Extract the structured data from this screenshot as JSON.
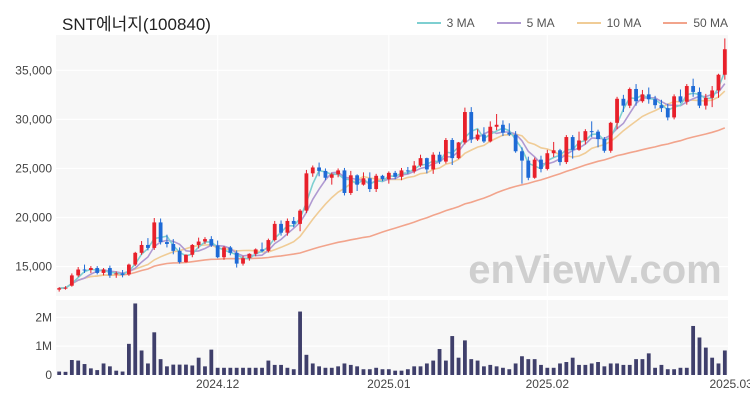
{
  "chart_data": {
    "type": "candlestick",
    "title": "SNT에너지(100840)",
    "legend": [
      {
        "label": "3 MA",
        "color": "#7ecfd1"
      },
      {
        "label": "5 MA",
        "color": "#b09ad2"
      },
      {
        "label": "10 MA",
        "color": "#f0cc96"
      },
      {
        "label": "50 MA",
        "color": "#f2a48c"
      }
    ],
    "watermark": "enViewV.com",
    "colors": {
      "up": "#e8202a",
      "down": "#1e6ad6",
      "volume": "#3f3f6b"
    },
    "price_axis": {
      "ylim": [
        12000,
        38600
      ],
      "ticks": [
        15000,
        20000,
        25000,
        30000,
        35000
      ],
      "tick_labels": [
        "15,000",
        "20,000",
        "25,000",
        "30,000",
        "35,000"
      ]
    },
    "volume_axis": {
      "ylim": [
        0,
        2600000
      ],
      "ticks": [
        0,
        1000000,
        2000000
      ],
      "tick_labels": [
        "0",
        "1M",
        "2M"
      ]
    },
    "x_ticks": [
      {
        "index": 25,
        "label": "2024.12"
      },
      {
        "index": 52,
        "label": "2025.01"
      },
      {
        "index": 77,
        "label": "2025.02"
      },
      {
        "index": 106,
        "label": "2025.03"
      }
    ],
    "candles": [
      [
        12650,
        12900,
        12450,
        12800,
        120000
      ],
      [
        12800,
        13000,
        12650,
        12850,
        110000
      ],
      [
        13050,
        14300,
        12950,
        14100,
        520000
      ],
      [
        14100,
        14950,
        13950,
        14700,
        500000
      ],
      [
        14700,
        15200,
        14350,
        14650,
        380000
      ],
      [
        14650,
        15050,
        14350,
        14850,
        230000
      ],
      [
        14850,
        15050,
        14200,
        14350,
        170000
      ],
      [
        14350,
        14850,
        14100,
        14700,
        400000
      ],
      [
        14850,
        15100,
        13850,
        14100,
        300000
      ],
      [
        14200,
        14500,
        13850,
        14300,
        150000
      ],
      [
        14300,
        14650,
        13900,
        14150,
        120000
      ],
      [
        14200,
        15300,
        14050,
        15200,
        1080000
      ],
      [
        15200,
        16500,
        15050,
        16400,
        2480000
      ],
      [
        16400,
        17600,
        16200,
        17200,
        850000
      ],
      [
        17200,
        17900,
        16650,
        16900,
        400000
      ],
      [
        16900,
        19950,
        16700,
        19500,
        1480000
      ],
      [
        19500,
        19900,
        17250,
        17500,
        550000
      ],
      [
        17500,
        18250,
        16950,
        17300,
        300000
      ],
      [
        17300,
        17800,
        16250,
        16600,
        360000
      ],
      [
        16600,
        16950,
        15300,
        15450,
        360000
      ],
      [
        15450,
        16250,
        15400,
        16200,
        360000
      ],
      [
        16200,
        17300,
        15950,
        17200,
        330000
      ],
      [
        17200,
        17950,
        16850,
        17550,
        600000
      ],
      [
        17550,
        18000,
        17300,
        17800,
        300000
      ],
      [
        17800,
        18100,
        17000,
        17150,
        880000
      ],
      [
        17150,
        17650,
        15850,
        15950,
        250000
      ],
      [
        15950,
        17100,
        15700,
        16950,
        250000
      ],
      [
        16950,
        17100,
        16150,
        16400,
        250000
      ],
      [
        16400,
        16650,
        14900,
        15300,
        250000
      ],
      [
        15300,
        16100,
        15100,
        15850,
        250000
      ],
      [
        15850,
        16350,
        15600,
        16300,
        250000
      ],
      [
        16300,
        16850,
        16050,
        16750,
        250000
      ],
      [
        16750,
        17450,
        16450,
        16600,
        250000
      ],
      [
        16600,
        17850,
        16450,
        17700,
        500000
      ],
      [
        17700,
        19650,
        17550,
        19350,
        350000
      ],
      [
        19350,
        19700,
        18150,
        18450,
        350000
      ],
      [
        18450,
        19900,
        18150,
        19650,
        250000
      ],
      [
        19650,
        20050,
        19000,
        19350,
        200000
      ],
      [
        19350,
        20850,
        18600,
        20700,
        2200000
      ],
      [
        20700,
        24850,
        20450,
        24500,
        700000
      ],
      [
        24500,
        25300,
        24150,
        25100,
        400000
      ],
      [
        25100,
        25600,
        24200,
        24750,
        300000
      ],
      [
        24750,
        25000,
        23800,
        24050,
        250000
      ],
      [
        24050,
        24550,
        23350,
        24400,
        250000
      ],
      [
        24400,
        25000,
        24100,
        24800,
        300000
      ],
      [
        24800,
        25050,
        22250,
        22500,
        400000
      ],
      [
        22500,
        24750,
        22300,
        24300,
        350000
      ],
      [
        24300,
        24400,
        22700,
        23350,
        300000
      ],
      [
        23350,
        24600,
        23250,
        24000,
        200000
      ],
      [
        24000,
        24600,
        22600,
        22900,
        200000
      ],
      [
        22900,
        24450,
        22600,
        24250,
        250000
      ],
      [
        24250,
        24350,
        23700,
        23900,
        200000
      ],
      [
        23900,
        24700,
        23450,
        24550,
        200000
      ],
      [
        24550,
        24750,
        23900,
        24150,
        150000
      ],
      [
        24150,
        25050,
        23800,
        24800,
        150000
      ],
      [
        24800,
        25150,
        24450,
        24700,
        200000
      ],
      [
        24700,
        25750,
        24500,
        25300,
        300000
      ],
      [
        25300,
        26400,
        25150,
        26050,
        300000
      ],
      [
        26050,
        26100,
        24500,
        24900,
        400000
      ],
      [
        24900,
        26650,
        24450,
        26400,
        500000
      ],
      [
        26400,
        26700,
        25450,
        25700,
        900000
      ],
      [
        25700,
        28100,
        25500,
        27900,
        500000
      ],
      [
        27900,
        28100,
        25350,
        26050,
        1350000
      ],
      [
        26050,
        27700,
        25950,
        27650,
        600000
      ],
      [
        27650,
        31200,
        27450,
        30750,
        1200000
      ],
      [
        30750,
        31250,
        27600,
        27950,
        550000
      ],
      [
        27950,
        29000,
        27800,
        28450,
        500000
      ],
      [
        28450,
        29200,
        27600,
        27750,
        300000
      ],
      [
        27750,
        29800,
        27650,
        29250,
        350000
      ],
      [
        29250,
        30550,
        28900,
        29450,
        300000
      ],
      [
        29450,
        29900,
        28300,
        28650,
        250000
      ],
      [
        28650,
        29600,
        28300,
        28450,
        200000
      ],
      [
        28450,
        28800,
        26600,
        26750,
        400000
      ],
      [
        26750,
        27150,
        23450,
        25800,
        650000
      ],
      [
        25800,
        26200,
        23800,
        24050,
        550000
      ],
      [
        24050,
        26100,
        23950,
        25900,
        550000
      ],
      [
        25900,
        26300,
        24600,
        24950,
        350000
      ],
      [
        24950,
        26900,
        24800,
        26550,
        250000
      ],
      [
        26550,
        27700,
        26150,
        26850,
        250000
      ],
      [
        26850,
        27000,
        25300,
        25650,
        400000
      ],
      [
        25650,
        28400,
        25450,
        28200,
        450000
      ],
      [
        28200,
        28400,
        26000,
        26900,
        600000
      ],
      [
        26900,
        28750,
        26800,
        27850,
        350000
      ],
      [
        27850,
        29000,
        27450,
        28800,
        350000
      ],
      [
        28800,
        29800,
        28200,
        28750,
        400000
      ],
      [
        28750,
        28950,
        27150,
        28000,
        450000
      ],
      [
        28000,
        28200,
        26600,
        26800,
        300000
      ],
      [
        26800,
        29750,
        26600,
        29650,
        400000
      ],
      [
        29650,
        32300,
        29000,
        32100,
        400000
      ],
      [
        32100,
        32500,
        30750,
        31400,
        350000
      ],
      [
        31400,
        33250,
        31150,
        33100,
        350000
      ],
      [
        33100,
        33600,
        31400,
        31850,
        550000
      ],
      [
        31850,
        33000,
        31700,
        32550,
        550000
      ],
      [
        32550,
        33250,
        31600,
        32050,
        750000
      ],
      [
        32050,
        32400,
        31100,
        31450,
        250000
      ],
      [
        31450,
        32000,
        30750,
        31150,
        350000
      ],
      [
        31150,
        31600,
        29900,
        30200,
        200000
      ],
      [
        30200,
        32550,
        30000,
        32350,
        200000
      ],
      [
        32350,
        33050,
        31650,
        31800,
        250000
      ],
      [
        31800,
        33600,
        31500,
        33400,
        250000
      ],
      [
        33400,
        34150,
        32300,
        32800,
        1700000
      ],
      [
        32800,
        33250,
        31150,
        31400,
        1300000
      ],
      [
        31400,
        32600,
        31000,
        32200,
        950000
      ],
      [
        32200,
        33400,
        31250,
        32950,
        600000
      ],
      [
        32950,
        34650,
        32200,
        34550,
        400000
      ],
      [
        34550,
        38250,
        34050,
        37150,
        850000
      ]
    ]
  }
}
